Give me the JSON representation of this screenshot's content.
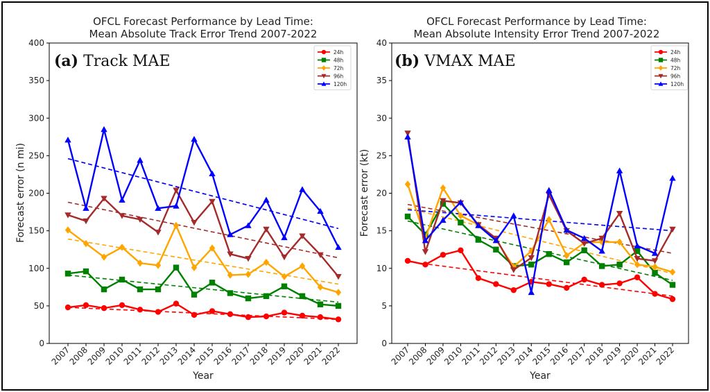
{
  "chart_data": [
    {
      "type": "line",
      "title": "OFCL Forecast Performance by Lead Time:",
      "subtitle": "Mean Absolute Track Error Trend 2007-2022",
      "panel_tag": "(a)",
      "panel_name": "Track MAE",
      "xlabel": "Year",
      "ylabel": "Forecast error (n mi)",
      "ylim": [
        0,
        400
      ],
      "yticks": [
        "0",
        "50",
        "100",
        "150",
        "200",
        "250",
        "300",
        "350",
        "400"
      ],
      "x": [
        "2007",
        "2008",
        "2009",
        "2010",
        "2011",
        "2012",
        "2013",
        "2014",
        "2015",
        "2016",
        "2017",
        "2018",
        "2019",
        "2020",
        "2021",
        "2022"
      ],
      "legend_position": "top-right",
      "series": [
        {
          "name": "24h",
          "color": "#ff0000",
          "marker": "circle",
          "values": [
            48,
            51,
            47,
            51,
            45,
            42,
            53,
            38,
            43,
            39,
            35,
            36,
            41,
            37,
            35,
            32
          ],
          "trend": [
            48,
            32
          ]
        },
        {
          "name": "48h",
          "color": "#008000",
          "marker": "square",
          "values": [
            93,
            96,
            72,
            85,
            72,
            72,
            101,
            65,
            81,
            67,
            60,
            63,
            76,
            63,
            52,
            50
          ],
          "trend": [
            91,
            55
          ]
        },
        {
          "name": "72h",
          "color": "#ffa500",
          "marker": "diamond",
          "values": [
            151,
            133,
            115,
            128,
            107,
            104,
            157,
            101,
            127,
            91,
            92,
            108,
            89,
            103,
            75,
            68
          ],
          "trend": [
            139,
            79
          ]
        },
        {
          "name": "96h",
          "color": "#a52a2a",
          "marker": "triangle-down",
          "values": [
            171,
            163,
            193,
            170,
            165,
            148,
            204,
            161,
            189,
            119,
            113,
            152,
            115,
            143,
            118,
            89
          ],
          "trend": [
            188,
            114
          ]
        },
        {
          "name": "120h",
          "color": "#0000ff",
          "marker": "triangle-up",
          "values": [
            271,
            180,
            285,
            191,
            244,
            180,
            183,
            272,
            226,
            145,
            157,
            191,
            141,
            205,
            176,
            128
          ],
          "trend": [
            246,
            153
          ]
        }
      ]
    },
    {
      "type": "line",
      "title": "OFCL Forecast Performance by Lead Time:",
      "subtitle": "Mean Absolute Intensity Error Trend 2007-2022",
      "panel_tag": "(b)",
      "panel_name": "VMAX MAE",
      "xlabel": "Year",
      "ylabel": "Forecast error (kt)",
      "ylim": [
        0,
        40
      ],
      "yticks": [
        "0",
        "5",
        "10",
        "15",
        "20",
        "25",
        "30",
        "35",
        "40"
      ],
      "x": [
        "2007",
        "2008",
        "2009",
        "2010",
        "2011",
        "2012",
        "2013",
        "2014",
        "2015",
        "2016",
        "2017",
        "2018",
        "2019",
        "2020",
        "2021",
        "2022"
      ],
      "legend_position": "top-right",
      "series": [
        {
          "name": "24h",
          "color": "#ff0000",
          "marker": "circle",
          "values": [
            11.0,
            10.5,
            11.8,
            12.4,
            8.7,
            7.9,
            7.1,
            8.2,
            7.9,
            7.4,
            8.5,
            7.8,
            8.0,
            8.8,
            6.6,
            5.9
          ],
          "trend": [
            10.9,
            6.3
          ]
        },
        {
          "name": "48h",
          "color": "#008000",
          "marker": "square",
          "values": [
            16.9,
            14.5,
            18.6,
            16.1,
            13.8,
            12.5,
            10.3,
            10.5,
            11.9,
            10.8,
            12.4,
            10.3,
            10.5,
            12.3,
            9.4,
            7.8
          ],
          "trend": [
            16.3,
            8.4
          ]
        },
        {
          "name": "72h",
          "color": "#ffa500",
          "marker": "diamond",
          "values": [
            21.2,
            14.0,
            20.7,
            17.0,
            15.8,
            13.8,
            10.2,
            12.3,
            16.5,
            11.7,
            13.4,
            13.5,
            13.5,
            10.5,
            10.2,
            9.5
          ],
          "trend": [
            18.0,
            9.3
          ]
        },
        {
          "name": "96h",
          "color": "#a52a2a",
          "marker": "triangle-down",
          "values": [
            28.0,
            12.2,
            19.0,
            18.7,
            15.8,
            14.0,
            9.8,
            11.4,
            19.8,
            15.0,
            13.3,
            14.0,
            17.3,
            11.3,
            11.0,
            15.2
          ],
          "trend": [
            18.5,
            12.0
          ]
        },
        {
          "name": "120h",
          "color": "#0000ff",
          "marker": "triangle-up",
          "values": [
            27.5,
            13.7,
            16.4,
            18.8,
            15.7,
            13.7,
            17.0,
            6.8,
            20.4,
            15.1,
            14.0,
            12.3,
            23.0,
            13.0,
            12.0,
            22.0
          ],
          "trend": [
            17.8,
            15.0
          ]
        }
      ]
    }
  ]
}
